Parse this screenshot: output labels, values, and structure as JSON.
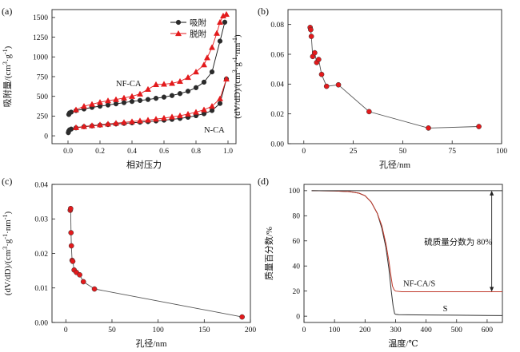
{
  "chart_data": [
    {
      "panel_label": "(a)",
      "type": "line",
      "xlabel": "相对压力",
      "ylabel": "吸附量/(cm³·g⁻¹)",
      "xlim": [
        -0.1,
        1.05
      ],
      "ylim": [
        -100,
        1600
      ],
      "xticks": [
        0.0,
        0.2,
        0.4,
        0.6,
        0.8,
        1.0
      ],
      "xtick_labels": [
        "0.0",
        "0.2",
        "0.4",
        "0.6",
        "0.8",
        "1.0"
      ],
      "yticks": [
        0,
        250,
        500,
        750,
        1000,
        1250,
        1500
      ],
      "ytick_labels": [
        "0",
        "250",
        "500",
        "750",
        "1000",
        "1250",
        "1500"
      ],
      "legend": [
        "吸附",
        "脱附"
      ],
      "legend_position": "top-right",
      "annotations": [
        "NF-CA",
        "N-CA"
      ],
      "series": [
        {
          "name": "吸附",
          "group": "NF-CA",
          "marker": "circle",
          "color": "#111111",
          "x": [
            0.005,
            0.01,
            0.02,
            0.05,
            0.1,
            0.15,
            0.2,
            0.25,
            0.3,
            0.35,
            0.4,
            0.45,
            0.5,
            0.55,
            0.6,
            0.65,
            0.7,
            0.75,
            0.8,
            0.85,
            0.9,
            0.95,
            0.98
          ],
          "y": [
            270,
            290,
            300,
            320,
            340,
            360,
            375,
            390,
            405,
            420,
            435,
            448,
            460,
            475,
            490,
            510,
            535,
            565,
            610,
            680,
            810,
            1200,
            1440
          ]
        },
        {
          "name": "脱附",
          "group": "NF-CA",
          "marker": "triangle",
          "color": "#e31a1c",
          "x": [
            0.99,
            0.97,
            0.95,
            0.93,
            0.9,
            0.87,
            0.85,
            0.8,
            0.75,
            0.7,
            0.65,
            0.6,
            0.55,
            0.5,
            0.45,
            0.4,
            0.35,
            0.3,
            0.25,
            0.2,
            0.15,
            0.1,
            0.05
          ],
          "y": [
            1540,
            1520,
            1440,
            1300,
            1120,
            990,
            900,
            810,
            740,
            690,
            665,
            655,
            650,
            590,
            530,
            500,
            480,
            460,
            445,
            425,
            400,
            375,
            330
          ]
        },
        {
          "name": "吸附",
          "group": "N-CA",
          "marker": "circle",
          "color": "#111111",
          "x": [
            0.002,
            0.005,
            0.01,
            0.02,
            0.05,
            0.1,
            0.15,
            0.2,
            0.25,
            0.3,
            0.35,
            0.4,
            0.45,
            0.5,
            0.55,
            0.6,
            0.65,
            0.7,
            0.75,
            0.8,
            0.85,
            0.9,
            0.95,
            0.99
          ],
          "y": [
            40,
            60,
            75,
            85,
            100,
            115,
            125,
            135,
            142,
            150,
            157,
            165,
            172,
            180,
            188,
            198,
            208,
            220,
            235,
            255,
            280,
            320,
            410,
            720
          ]
        },
        {
          "name": "脱附",
          "group": "N-CA",
          "marker": "triangle",
          "color": "#e31a1c",
          "x": [
            0.99,
            0.95,
            0.9,
            0.85,
            0.8,
            0.75,
            0.7,
            0.65,
            0.6,
            0.55,
            0.5,
            0.45,
            0.4,
            0.35,
            0.3,
            0.25,
            0.2,
            0.15,
            0.1,
            0.05
          ],
          "y": [
            720,
            470,
            375,
            330,
            300,
            275,
            255,
            240,
            225,
            212,
            200,
            190,
            180,
            170,
            160,
            150,
            140,
            130,
            118,
            105
          ]
        }
      ]
    },
    {
      "panel_label": "(b)",
      "type": "line",
      "xlabel": "孔径/nm",
      "ylabel": "(dV/dD)/(cm³·g⁻¹·nm⁻¹)",
      "xlim": [
        -8,
        100
      ],
      "ylim": [
        0,
        0.09
      ],
      "xticks": [
        0,
        25,
        50,
        75,
        100
      ],
      "xtick_labels": [
        "0",
        "25",
        "50",
        "75",
        "100"
      ],
      "yticks": [
        0.0,
        0.02,
        0.04,
        0.06,
        0.08
      ],
      "ytick_labels": [
        "0.00",
        "0.02",
        "0.04",
        "0.06",
        "0.08"
      ],
      "series": [
        {
          "marker": "circle",
          "color": "#e31a1c",
          "x": [
            3.2,
            3.5,
            3.8,
            4.5,
            5.5,
            6.5,
            7.5,
            9.0,
            11.5,
            17.5,
            33,
            63,
            88.5
          ],
          "y": [
            0.078,
            0.0765,
            0.072,
            0.0585,
            0.061,
            0.0545,
            0.0565,
            0.0465,
            0.0385,
            0.0395,
            0.0215,
            0.0105,
            0.0115
          ]
        }
      ]
    },
    {
      "panel_label": "(c)",
      "type": "line",
      "xlabel": "孔径/nm",
      "ylabel": "(dV/dD)/(cm³·g⁻¹·nm⁻¹)",
      "xlim": [
        -15,
        200
      ],
      "ylim": [
        0,
        0.04
      ],
      "xticks": [
        0,
        50,
        100,
        150,
        200
      ],
      "xtick_labels": [
        "0",
        "50",
        "100",
        "150",
        "200"
      ],
      "yticks": [
        0.0,
        0.01,
        0.02,
        0.03,
        0.04
      ],
      "ytick_labels": [
        "0.00",
        "0.01",
        "0.02",
        "0.03",
        "0.04"
      ],
      "series": [
        {
          "marker": "circle",
          "color": "#e31a1c",
          "x": [
            4.8,
            5.2,
            5.6,
            6.0,
            6.8,
            7.5,
            9.0,
            11.5,
            15,
            19,
            31,
            191
          ],
          "y": [
            0.0325,
            0.033,
            0.026,
            0.0222,
            0.018,
            0.0177,
            0.0152,
            0.0145,
            0.0138,
            0.0118,
            0.0097,
            0.0016
          ]
        }
      ]
    },
    {
      "panel_label": "(d)",
      "type": "line",
      "xlabel": "温度/℃",
      "ylabel": "质量百分数/%",
      "xlim": [
        0,
        650
      ],
      "ylim": [
        -5,
        105
      ],
      "xticks": [
        0,
        100,
        200,
        300,
        400,
        500,
        600
      ],
      "xtick_labels": [
        "0",
        "100",
        "200",
        "300",
        "400",
        "500",
        "600"
      ],
      "yticks": [
        0,
        20,
        40,
        60,
        80,
        100
      ],
      "ytick_labels": [
        "0",
        "20",
        "40",
        "60",
        "80",
        "100"
      ],
      "annotations": [
        "硫质量分数为 80%",
        "NF-CA/S",
        "S"
      ],
      "series": [
        {
          "group": "S",
          "color": "#333333",
          "x": [
            25,
            100,
            150,
            180,
            200,
            220,
            240,
            255,
            268,
            278,
            286,
            292,
            297,
            300,
            310,
            400,
            500,
            600,
            650
          ],
          "y": [
            100,
            99.8,
            99.2,
            98,
            96,
            91,
            82,
            70,
            55,
            38,
            20,
            8,
            2,
            1.5,
            1.2,
            1,
            0.8,
            0.6,
            0.5
          ]
        },
        {
          "group": "NF-CA/S",
          "color": "#c0392b",
          "x": [
            25,
            100,
            150,
            180,
            200,
            220,
            240,
            255,
            268,
            278,
            285,
            290,
            295,
            300,
            320,
            400,
            500,
            600,
            650
          ],
          "y": [
            100,
            99.8,
            99.2,
            98,
            96,
            91,
            82,
            72,
            58,
            44,
            32,
            24,
            21,
            20,
            19.5,
            19.5,
            19.5,
            19.5,
            19.5
          ]
        },
        {
          "group": "reference",
          "color": "#333333",
          "x": [
            25,
            650
          ],
          "y": [
            100,
            100
          ]
        }
      ]
    }
  ]
}
